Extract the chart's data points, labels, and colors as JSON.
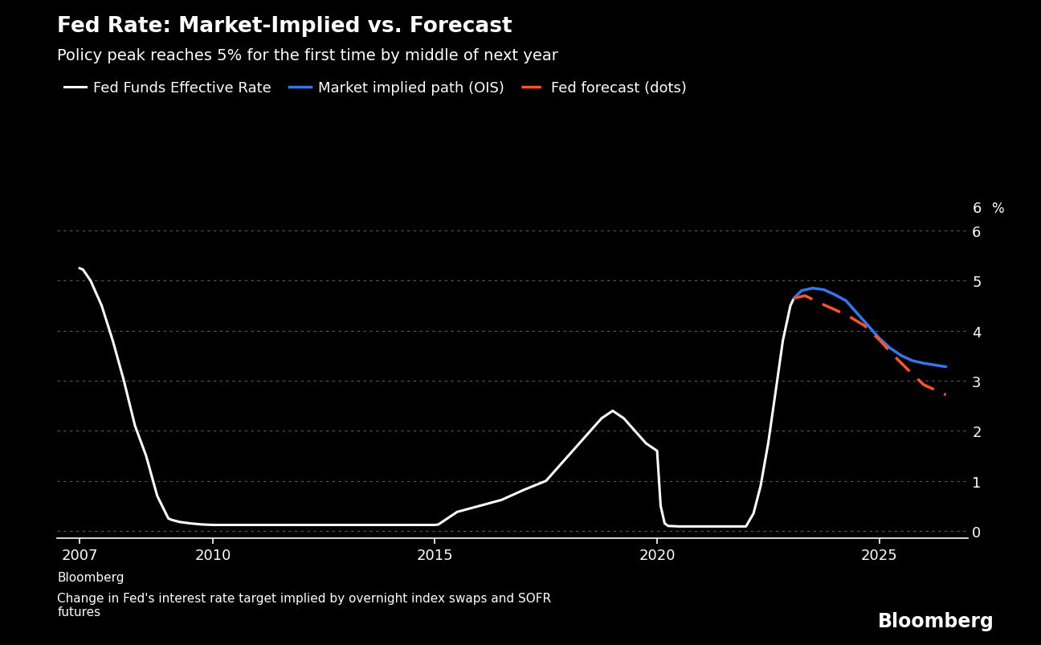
{
  "title": "Fed Rate: Market-Implied vs. Forecast",
  "subtitle": "Policy peak reaches 5% for the first time by middle of next year",
  "legend": [
    {
      "label": "Fed Funds Effective Rate",
      "color": "#ffffff",
      "linestyle": "solid"
    },
    {
      "label": "Market implied path (OIS)",
      "color": "#3377ee",
      "linestyle": "solid"
    },
    {
      "label": "Fed forecast (dots)",
      "color": "#ff5522",
      "linestyle": "dashed"
    }
  ],
  "background_color": "#000000",
  "text_color": "#ffffff",
  "grid_color": "#666666",
  "source_text": "Bloomberg",
  "note_text": "Change in Fed's interest rate target implied by overnight index swaps and SOFR\nfutures",
  "bloomberg_watermark": "Bloomberg",
  "xlim": [
    2006.5,
    2027.0
  ],
  "ylim": [
    -0.15,
    6.3
  ],
  "yticks": [
    0,
    1,
    2,
    3,
    4,
    5,
    6
  ],
  "ytick_labels": [
    "0",
    "1",
    "2",
    "3",
    "4",
    "5",
    "6"
  ],
  "xticks": [
    2007,
    2010,
    2015,
    2020,
    2025
  ],
  "ylabel_text": "%",
  "fed_funds": {
    "x": [
      2007.0,
      2007.08,
      2007.25,
      2007.5,
      2007.75,
      2008.0,
      2008.25,
      2008.5,
      2008.75,
      2009.0,
      2009.08,
      2009.25,
      2009.5,
      2009.75,
      2010.0,
      2011.0,
      2012.0,
      2013.0,
      2014.0,
      2015.0,
      2015.08,
      2015.5,
      2016.0,
      2016.5,
      2017.0,
      2017.5,
      2018.0,
      2018.5,
      2018.75,
      2019.0,
      2019.25,
      2019.5,
      2019.75,
      2020.0,
      2020.08,
      2020.17,
      2020.25,
      2020.5,
      2021.0,
      2021.5,
      2022.0,
      2022.17,
      2022.33,
      2022.5,
      2022.67,
      2022.83,
      2023.0,
      2023.08
    ],
    "y": [
      5.25,
      5.22,
      5.0,
      4.5,
      3.8,
      3.0,
      2.1,
      1.5,
      0.7,
      0.25,
      0.22,
      0.18,
      0.15,
      0.13,
      0.12,
      0.12,
      0.12,
      0.12,
      0.12,
      0.12,
      0.13,
      0.38,
      0.5,
      0.62,
      0.82,
      1.0,
      1.5,
      2.0,
      2.25,
      2.4,
      2.25,
      2.0,
      1.75,
      1.6,
      0.5,
      0.15,
      0.1,
      0.09,
      0.09,
      0.09,
      0.09,
      0.35,
      0.9,
      1.75,
      2.8,
      3.8,
      4.5,
      4.65
    ]
  },
  "ois_path": {
    "x": [
      2023.08,
      2023.25,
      2023.5,
      2023.75,
      2024.0,
      2024.25,
      2024.5,
      2024.75,
      2025.0,
      2025.25,
      2025.5,
      2025.75,
      2026.0,
      2026.5
    ],
    "y": [
      4.65,
      4.8,
      4.85,
      4.82,
      4.72,
      4.6,
      4.35,
      4.1,
      3.85,
      3.65,
      3.5,
      3.4,
      3.35,
      3.28
    ]
  },
  "fed_forecast": {
    "x": [
      2023.08,
      2023.33,
      2023.67,
      2024.0,
      2024.33,
      2024.67,
      2025.0,
      2025.33,
      2025.67,
      2026.0,
      2026.5
    ],
    "y": [
      4.65,
      4.7,
      4.55,
      4.42,
      4.28,
      4.1,
      3.82,
      3.5,
      3.2,
      2.92,
      2.72
    ]
  }
}
